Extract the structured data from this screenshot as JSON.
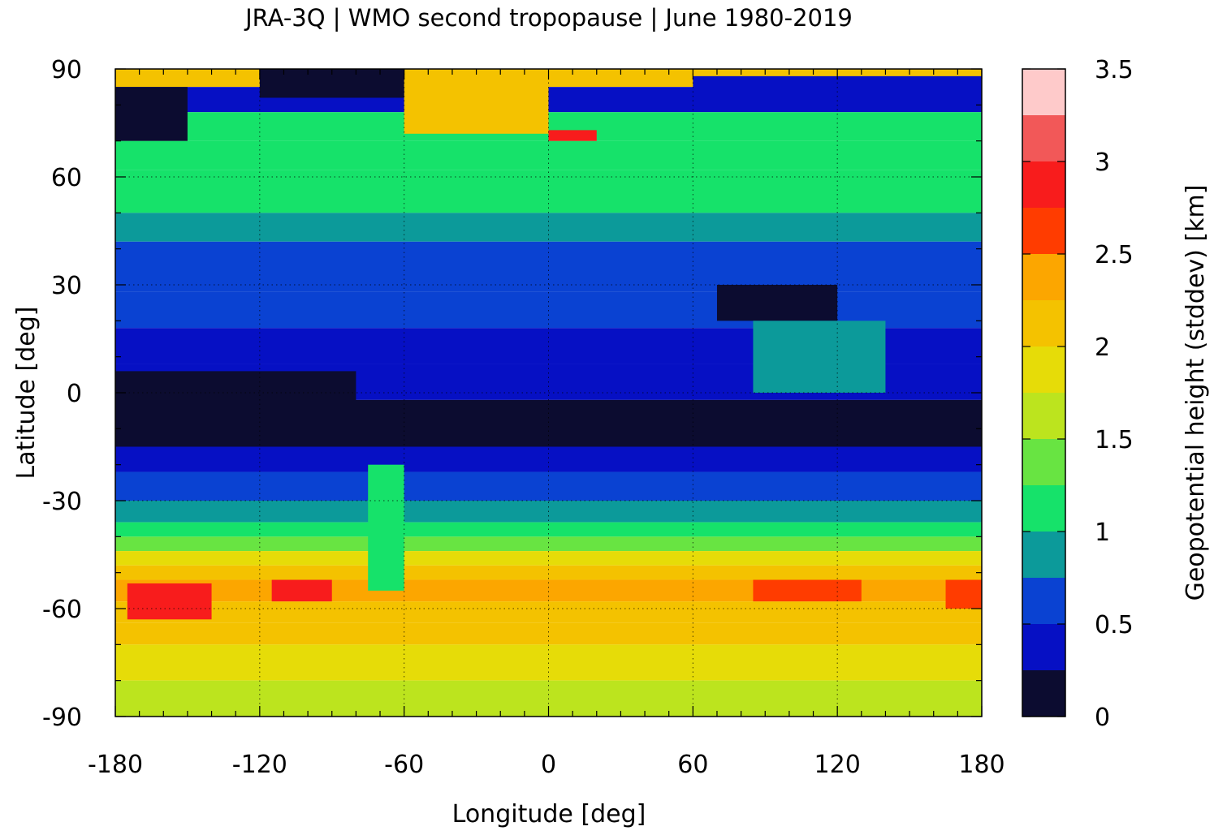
{
  "chart_data": {
    "type": "heatmap",
    "title": "JRA-3Q | WMO second tropopause | June 1980-2019",
    "xlabel": "Longitude [deg]",
    "ylabel": "Latitude [deg]",
    "colorbar_label": "Geopotential height (stddev) [km]",
    "xlim": [
      -180,
      180
    ],
    "ylim": [
      -90,
      90
    ],
    "x_ticks": [
      -180,
      -120,
      -60,
      0,
      60,
      120,
      180
    ],
    "x_tick_labels": [
      "-180",
      "-120",
      "-60",
      "0",
      "60",
      "120",
      "180"
    ],
    "y_ticks": [
      90,
      60,
      30,
      0,
      -30,
      -60,
      -90
    ],
    "y_tick_labels": [
      "90",
      "60",
      "30",
      "0",
      "-30",
      "-60",
      "-90"
    ],
    "grid": true,
    "colorbar": {
      "range": [
        0,
        3.5
      ],
      "ticks": [
        0,
        0.5,
        1,
        1.5,
        2,
        2.5,
        3,
        3.5
      ],
      "tick_labels": [
        "0",
        "0.5",
        "1",
        "1.5",
        "2",
        "2.5",
        "3",
        "3.5"
      ],
      "levels": [
        {
          "from": 0.0,
          "to": 0.25,
          "color": "#0c0c30"
        },
        {
          "from": 0.25,
          "to": 0.5,
          "color": "#0610c4"
        },
        {
          "from": 0.5,
          "to": 0.75,
          "color": "#0a42d2"
        },
        {
          "from": 0.75,
          "to": 1.0,
          "color": "#0c9a9a"
        },
        {
          "from": 1.0,
          "to": 1.25,
          "color": "#16e26a"
        },
        {
          "from": 1.25,
          "to": 1.5,
          "color": "#68e442"
        },
        {
          "from": 1.5,
          "to": 1.75,
          "color": "#bce41e"
        },
        {
          "from": 1.75,
          "to": 2.0,
          "color": "#e6dc08"
        },
        {
          "from": 2.0,
          "to": 2.25,
          "color": "#f4c200"
        },
        {
          "from": 2.25,
          "to": 2.5,
          "color": "#fca600"
        },
        {
          "from": 2.5,
          "to": 2.75,
          "color": "#ff3c00"
        },
        {
          "from": 2.75,
          "to": 3.0,
          "color": "#f81c1c"
        },
        {
          "from": 3.0,
          "to": 3.25,
          "color": "#f25858"
        },
        {
          "from": 3.25,
          "to": 3.5,
          "color": "#fecaca"
        }
      ]
    },
    "zonal_bands": [
      {
        "lat_min": 85,
        "lat_max": 90,
        "value": 2.1
      },
      {
        "lat_min": 78,
        "lat_max": 85,
        "value": 0.3
      },
      {
        "lat_min": 70,
        "lat_max": 78,
        "value": 1.1
      },
      {
        "lat_min": 62,
        "lat_max": 70,
        "value": 1.2
      },
      {
        "lat_min": 50,
        "lat_max": 62,
        "value": 1.0
      },
      {
        "lat_min": 42,
        "lat_max": 50,
        "value": 0.9
      },
      {
        "lat_min": 28,
        "lat_max": 42,
        "value": 0.6
      },
      {
        "lat_min": 18,
        "lat_max": 28,
        "value": 0.55
      },
      {
        "lat_min": 8,
        "lat_max": 18,
        "value": 0.4
      },
      {
        "lat_min": -2,
        "lat_max": 8,
        "value": 0.4
      },
      {
        "lat_min": -15,
        "lat_max": -2,
        "value": 0.2
      },
      {
        "lat_min": -22,
        "lat_max": -15,
        "value": 0.4
      },
      {
        "lat_min": -30,
        "lat_max": -22,
        "value": 0.6
      },
      {
        "lat_min": -36,
        "lat_max": -30,
        "value": 0.9
      },
      {
        "lat_min": -40,
        "lat_max": -36,
        "value": 1.1
      },
      {
        "lat_min": -44,
        "lat_max": -40,
        "value": 1.4
      },
      {
        "lat_min": -48,
        "lat_max": -44,
        "value": 1.9
      },
      {
        "lat_min": -52,
        "lat_max": -48,
        "value": 2.1
      },
      {
        "lat_min": -58,
        "lat_max": -52,
        "value": 2.3
      },
      {
        "lat_min": -64,
        "lat_max": -58,
        "value": 2.2
      },
      {
        "lat_min": -70,
        "lat_max": -64,
        "value": 2.1
      },
      {
        "lat_min": -80,
        "lat_max": -70,
        "value": 1.85
      },
      {
        "lat_min": -90,
        "lat_max": -80,
        "value": 1.6
      }
    ],
    "regional_features": [
      {
        "lon_min": -60,
        "lon_max": 0,
        "lat_min": 72,
        "lat_max": 90,
        "value": 2.2
      },
      {
        "lon_min": -120,
        "lon_max": -60,
        "lat_min": 82,
        "lat_max": 90,
        "value": 0.1
      },
      {
        "lon_min": -180,
        "lon_max": -150,
        "lat_min": 70,
        "lat_max": 85,
        "value": 0.1
      },
      {
        "lon_min": 60,
        "lon_max": 180,
        "lat_min": 80,
        "lat_max": 88,
        "value": 0.4
      },
      {
        "lon_min": -180,
        "lon_max": -80,
        "lat_min": -6,
        "lat_max": 6,
        "value": 0.1
      },
      {
        "lon_min": 80,
        "lon_max": 180,
        "lat_min": -14,
        "lat_max": -8,
        "value": 0.1
      },
      {
        "lon_min": 70,
        "lon_max": 120,
        "lat_min": 20,
        "lat_max": 30,
        "value": 0.15
      },
      {
        "lon_min": 85,
        "lon_max": 140,
        "lat_min": 0,
        "lat_max": 20,
        "value": 0.8
      },
      {
        "lon_min": -75,
        "lon_max": -60,
        "lat_min": -55,
        "lat_max": -20,
        "value": 1.1
      },
      {
        "lon_min": -175,
        "lon_max": -140,
        "lat_min": -63,
        "lat_max": -53,
        "value": 2.8
      },
      {
        "lon_min": -115,
        "lon_max": -90,
        "lat_min": -58,
        "lat_max": -52,
        "value": 2.8
      },
      {
        "lon_min": 85,
        "lon_max": 130,
        "lat_min": -58,
        "lat_max": -52,
        "value": 2.7
      },
      {
        "lon_min": 165,
        "lon_max": 180,
        "lat_min": -60,
        "lat_max": -52,
        "value": 2.7
      },
      {
        "lon_min": 0,
        "lon_max": 20,
        "lat_min": 70,
        "lat_max": 73,
        "value": 2.8
      }
    ]
  }
}
